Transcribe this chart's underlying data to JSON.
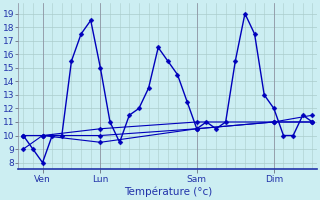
{
  "background_color": "#cceef2",
  "grid_color": "#aacccc",
  "line_color": "#0000bb",
  "marker_color": "#0000bb",
  "xlabel": "Température (°c)",
  "ylim": [
    7.5,
    19.8
  ],
  "yticks": [
    8,
    9,
    10,
    11,
    12,
    13,
    14,
    15,
    16,
    17,
    18,
    19
  ],
  "xlim": [
    -0.5,
    30.5
  ],
  "xtick_positions": [
    2,
    8,
    18,
    26
  ],
  "xtick_labels": [
    "Ven",
    "Lun",
    "Sam",
    "Dim"
  ],
  "vline_positions": [
    2,
    8,
    18,
    26
  ],
  "series": [
    [
      0,
      10,
      1,
      9,
      2,
      8,
      3,
      10,
      4,
      10,
      5,
      15.5,
      6,
      17.5,
      7,
      18.5,
      8,
      15,
      9,
      11,
      10,
      9.5,
      11,
      11.5,
      12,
      12,
      13,
      13.5,
      14,
      16.5,
      15,
      15.5,
      16,
      14.5,
      17,
      12.5,
      18,
      10.5,
      19,
      11,
      20,
      10.5,
      21,
      11,
      22,
      15.5,
      23,
      19,
      24,
      17.5,
      25,
      13,
      26,
      12,
      27,
      10,
      28,
      10,
      29,
      11.5,
      30,
      11
    ],
    [
      0,
      10,
      2,
      10,
      8,
      10.5,
      18,
      11,
      26,
      11,
      30,
      11
    ],
    [
      0,
      9,
      2,
      10,
      8,
      10,
      18,
      10.5,
      26,
      11,
      30,
      11
    ],
    [
      0,
      10,
      2,
      10,
      8,
      9.5,
      18,
      10.5,
      26,
      11,
      30,
      11.5
    ]
  ],
  "marker_size": 2.5,
  "linewidth_main": 1.0,
  "linewidth_smooth": 0.8,
  "figsize": [
    3.2,
    2.0
  ],
  "dpi": 100
}
